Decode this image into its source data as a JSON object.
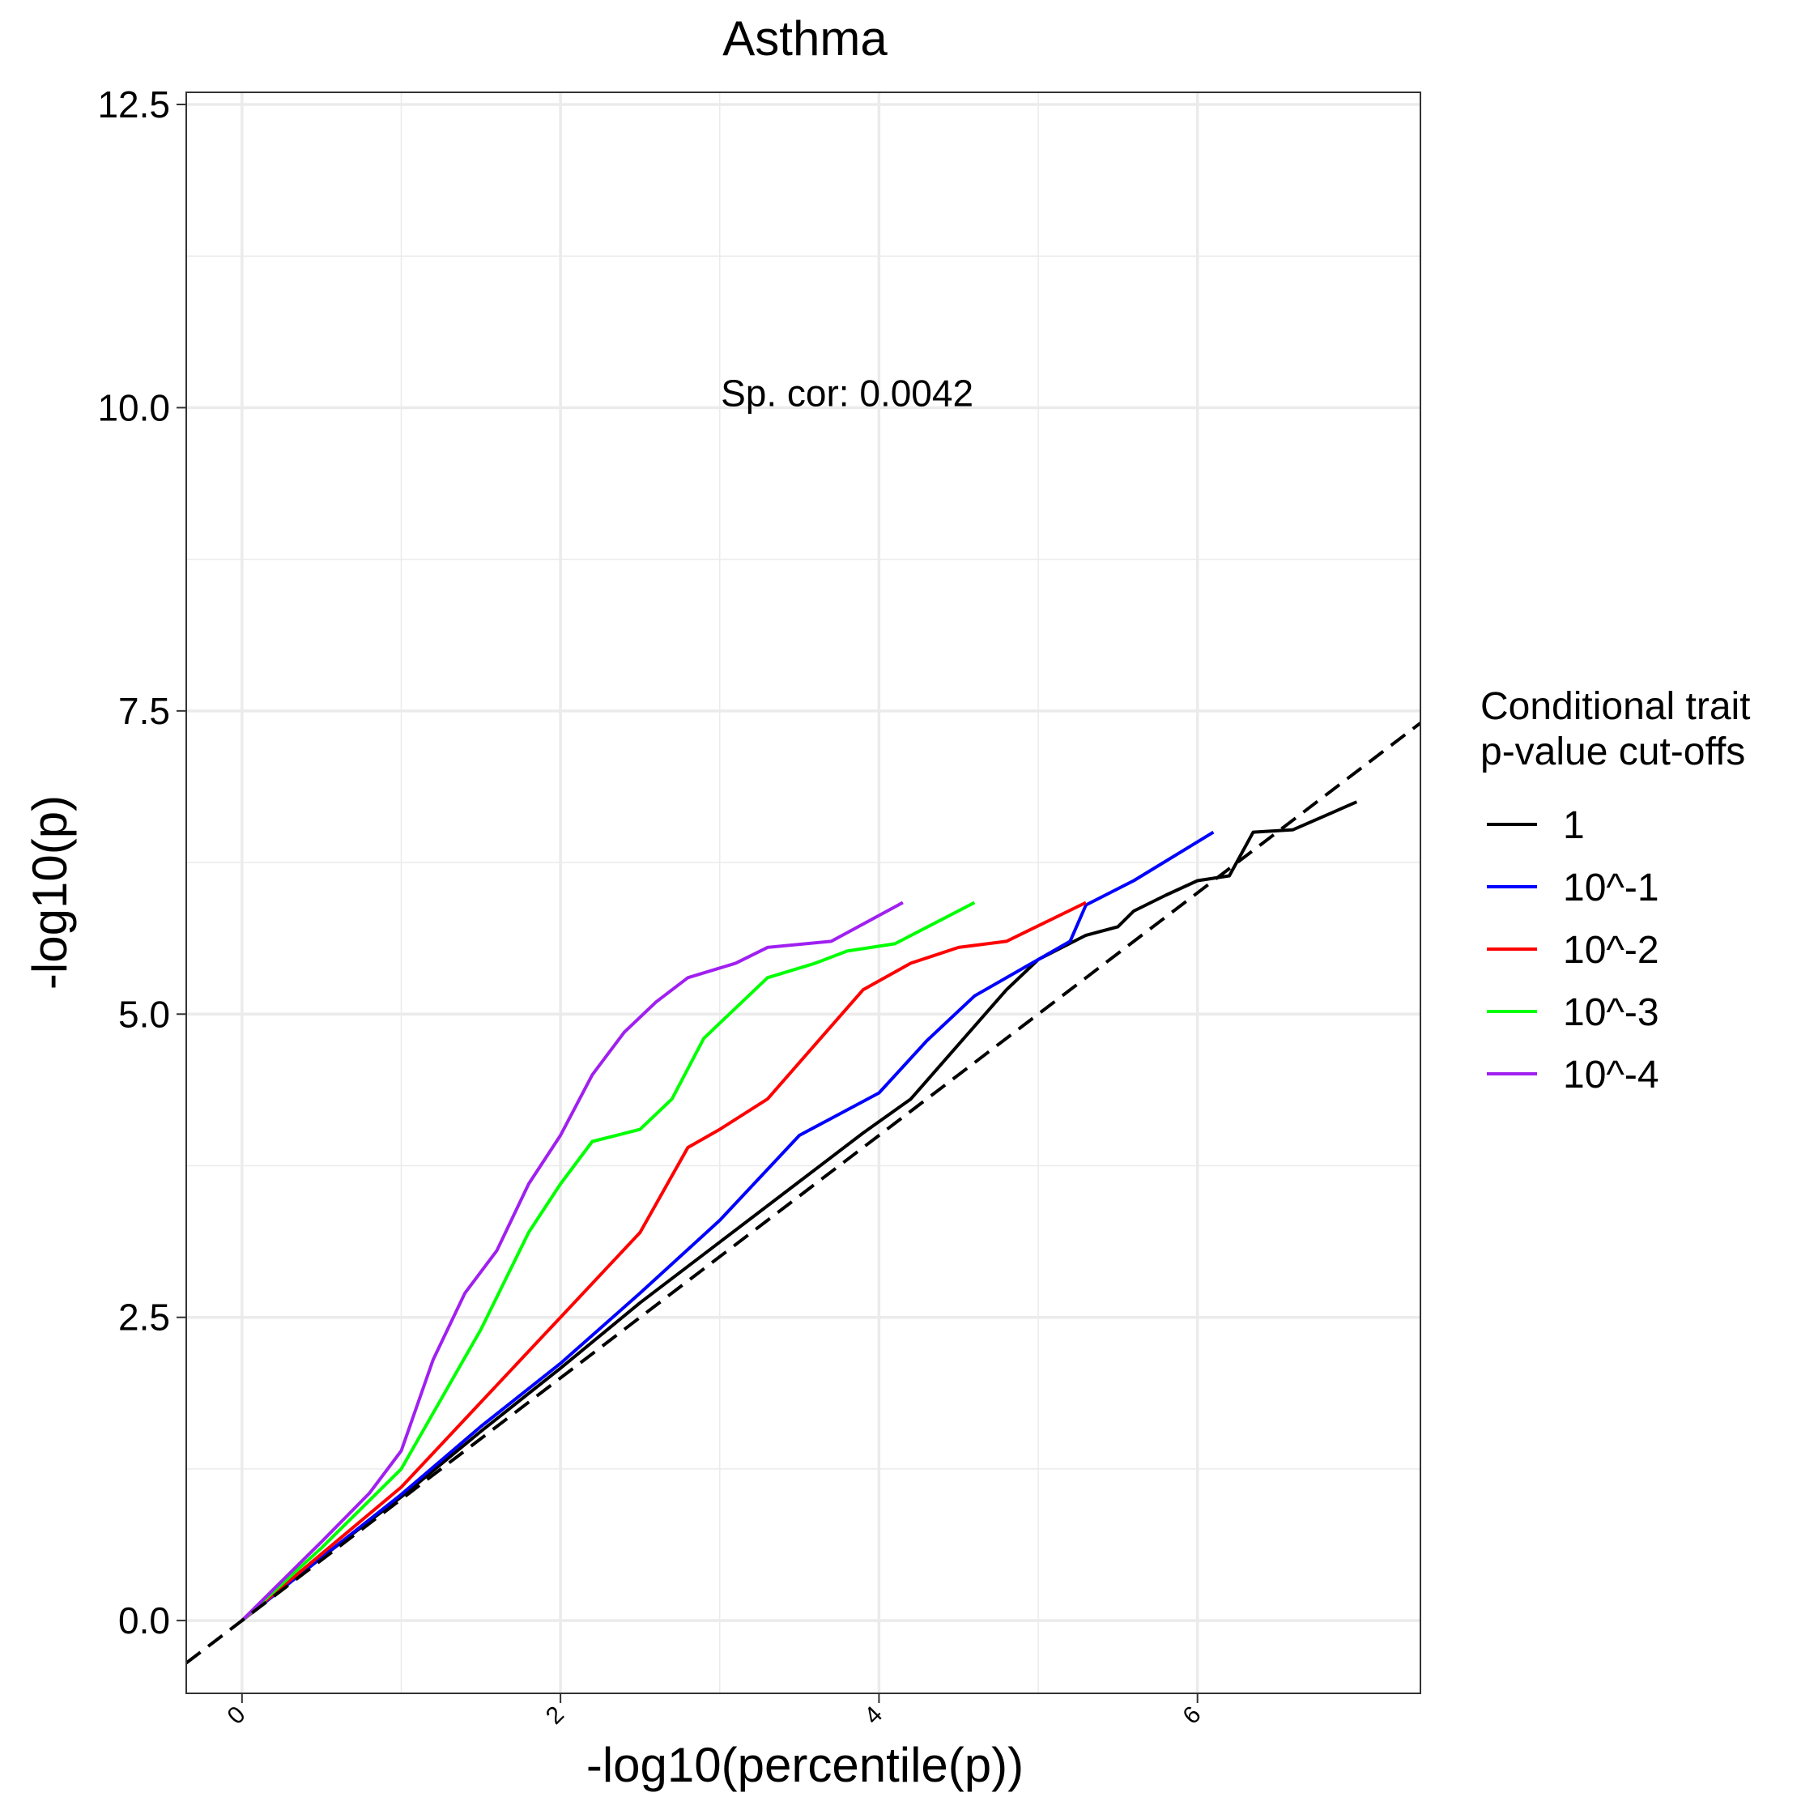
{
  "chart_data": {
    "type": "line",
    "title": "Asthma",
    "xlabel": "-log10(percentile(p))",
    "ylabel": "-log10(p)",
    "xlim": [
      -0.35,
      7.4
    ],
    "ylim": [
      -0.6,
      12.6
    ],
    "x_ticks": [
      0,
      2,
      4,
      6
    ],
    "x_tick_labels": [
      "0",
      "2",
      "4",
      "6"
    ],
    "y_ticks": [
      0,
      2.5,
      5,
      7.5,
      10,
      12.5
    ],
    "y_tick_labels": [
      "0.0",
      "2.5",
      "5.0",
      "7.5",
      "10.0",
      "12.5"
    ],
    "grid": true,
    "annotation": {
      "text": "Sp. cor: 0.0042",
      "x": 3.8,
      "y": 10.12
    },
    "reference_line": {
      "style": "dashed",
      "color": "#000000",
      "slope": 1,
      "intercept": 0
    },
    "legend": {
      "title_line1": "Conditional trait",
      "title_line2": "p-value cut-offs",
      "placement": "right"
    },
    "series": [
      {
        "name": "1",
        "color": "#000000",
        "points": [
          [
            0,
            0
          ],
          [
            0.5,
            0.52
          ],
          [
            1.0,
            1.02
          ],
          [
            1.5,
            1.56
          ],
          [
            2.0,
            2.08
          ],
          [
            2.5,
            2.62
          ],
          [
            3.0,
            3.12
          ],
          [
            3.5,
            3.62
          ],
          [
            3.9,
            4.02
          ],
          [
            4.2,
            4.3
          ],
          [
            4.5,
            4.75
          ],
          [
            4.8,
            5.2
          ],
          [
            5.0,
            5.45
          ],
          [
            5.3,
            5.65
          ],
          [
            5.5,
            5.72
          ],
          [
            5.6,
            5.85
          ],
          [
            5.8,
            5.98
          ],
          [
            6.0,
            6.1
          ],
          [
            6.2,
            6.14
          ],
          [
            6.35,
            6.5
          ],
          [
            6.6,
            6.52
          ],
          [
            7.0,
            6.75
          ]
        ]
      },
      {
        "name": "10^-1",
        "color": "#0000ff",
        "points": [
          [
            0,
            0
          ],
          [
            0.5,
            0.52
          ],
          [
            1.0,
            1.04
          ],
          [
            1.5,
            1.6
          ],
          [
            2.0,
            2.12
          ],
          [
            2.5,
            2.7
          ],
          [
            3.0,
            3.3
          ],
          [
            3.5,
            4.0
          ],
          [
            4.0,
            4.35
          ],
          [
            4.3,
            4.78
          ],
          [
            4.6,
            5.15
          ],
          [
            5.0,
            5.45
          ],
          [
            5.2,
            5.6
          ],
          [
            5.3,
            5.9
          ],
          [
            5.6,
            6.1
          ],
          [
            6.1,
            6.5
          ]
        ]
      },
      {
        "name": "10^-2",
        "color": "#ff0000",
        "points": [
          [
            0,
            0
          ],
          [
            0.5,
            0.55
          ],
          [
            1.0,
            1.1
          ],
          [
            1.5,
            1.8
          ],
          [
            2.0,
            2.5
          ],
          [
            2.5,
            3.2
          ],
          [
            2.8,
            3.9
          ],
          [
            3.0,
            4.05
          ],
          [
            3.3,
            4.3
          ],
          [
            3.6,
            4.75
          ],
          [
            3.9,
            5.2
          ],
          [
            4.2,
            5.42
          ],
          [
            4.5,
            5.55
          ],
          [
            4.8,
            5.6
          ],
          [
            5.3,
            5.92
          ]
        ]
      },
      {
        "name": "10^-3",
        "color": "#00ff00",
        "points": [
          [
            0,
            0
          ],
          [
            0.5,
            0.6
          ],
          [
            1.0,
            1.25
          ],
          [
            1.5,
            2.4
          ],
          [
            1.8,
            3.2
          ],
          [
            2.0,
            3.6
          ],
          [
            2.2,
            3.95
          ],
          [
            2.5,
            4.05
          ],
          [
            2.7,
            4.3
          ],
          [
            2.9,
            4.8
          ],
          [
            3.1,
            5.05
          ],
          [
            3.3,
            5.3
          ],
          [
            3.6,
            5.42
          ],
          [
            3.8,
            5.52
          ],
          [
            4.1,
            5.58
          ],
          [
            4.6,
            5.92
          ]
        ]
      },
      {
        "name": "10^-4",
        "color": "#a020f0",
        "points": [
          [
            0,
            0
          ],
          [
            0.5,
            0.65
          ],
          [
            0.8,
            1.05
          ],
          [
            1.0,
            1.4
          ],
          [
            1.2,
            2.15
          ],
          [
            1.4,
            2.7
          ],
          [
            1.6,
            3.05
          ],
          [
            1.8,
            3.6
          ],
          [
            2.0,
            4.0
          ],
          [
            2.2,
            4.5
          ],
          [
            2.4,
            4.85
          ],
          [
            2.6,
            5.1
          ],
          [
            2.8,
            5.3
          ],
          [
            3.1,
            5.42
          ],
          [
            3.3,
            5.55
          ],
          [
            3.7,
            5.6
          ],
          [
            4.15,
            5.92
          ]
        ]
      }
    ]
  }
}
